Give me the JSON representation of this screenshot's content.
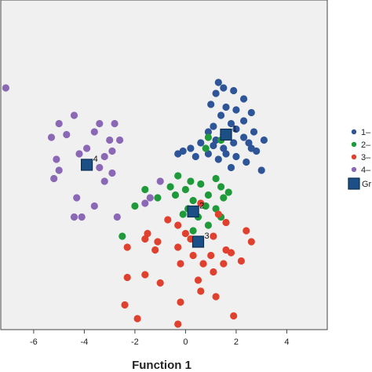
{
  "chart_data": {
    "type": "scatter",
    "title": "",
    "xlabel": "Function 1",
    "ylabel": "",
    "xlim": [
      -7.3,
      5.6
    ],
    "ylim": [
      -6.0,
      6.0
    ],
    "xticks": [
      "-6",
      "-4",
      "-2",
      "0",
      "2",
      "4"
    ],
    "xtick_values": [
      -6,
      -4,
      -2,
      0,
      2,
      4
    ],
    "grid": false,
    "legend_position": "right",
    "colors": {
      "plot_bg": "#f0f0f0",
      "series_1": "#2e5597",
      "series_2": "#1f9a3a",
      "series_3": "#e0412f",
      "series_4": "#8a68b5",
      "centroid": "#1b4f86"
    },
    "series": [
      {
        "name": "1",
        "legend_label": "1–",
        "points": [
          [
            1.3,
            3.0
          ],
          [
            1.5,
            2.8
          ],
          [
            1.2,
            2.6
          ],
          [
            1.9,
            2.7
          ],
          [
            2.3,
            2.4
          ],
          [
            1.0,
            2.2
          ],
          [
            1.6,
            2.1
          ],
          [
            2.0,
            2.0
          ],
          [
            1.4,
            1.8
          ],
          [
            2.6,
            1.9
          ],
          [
            2.3,
            1.6
          ],
          [
            1.8,
            1.5
          ],
          [
            1.1,
            1.4
          ],
          [
            2.0,
            1.3
          ],
          [
            2.7,
            1.2
          ],
          [
            1.5,
            1.1
          ],
          [
            2.3,
            1.0
          ],
          [
            0.9,
            1.2
          ],
          [
            3.1,
            0.9
          ],
          [
            1.2,
            0.9
          ],
          [
            1.9,
            0.8
          ],
          [
            2.5,
            0.8
          ],
          [
            0.6,
            0.8
          ],
          [
            0.2,
            0.6
          ],
          [
            1.5,
            0.6
          ],
          [
            2.8,
            0.5
          ],
          [
            -0.3,
            0.4
          ],
          [
            0.9,
            0.4
          ],
          [
            2.0,
            0.3
          ],
          [
            1.3,
            0.2
          ],
          [
            2.4,
            0.1
          ],
          [
            1.8,
            -0.1
          ],
          [
            3.0,
            -0.2
          ],
          [
            -0.1,
            0.5
          ],
          [
            0.4,
            0.3
          ],
          [
            1.6,
            0.4
          ],
          [
            2.6,
            0.6
          ],
          [
            1.1,
            0.7
          ]
        ]
      },
      {
        "name": "2",
        "legend_label": "2–",
        "points": [
          [
            0.9,
            1.0
          ],
          [
            1.4,
            0.9
          ],
          [
            0.8,
            0.6
          ],
          [
            -0.3,
            -0.4
          ],
          [
            0.2,
            -0.6
          ],
          [
            0.6,
            -0.7
          ],
          [
            1.2,
            -0.5
          ],
          [
            1.4,
            -0.8
          ],
          [
            0.0,
            -0.9
          ],
          [
            -1.6,
            -0.9
          ],
          [
            -1.1,
            -1.2
          ],
          [
            -0.4,
            -1.1
          ],
          [
            0.9,
            -1.1
          ],
          [
            1.5,
            -1.2
          ],
          [
            0.3,
            -1.3
          ],
          [
            -2.0,
            -1.5
          ],
          [
            0.8,
            -1.5
          ],
          [
            0.1,
            -1.6
          ],
          [
            1.2,
            -1.6
          ],
          [
            -0.1,
            -1.8
          ],
          [
            0.5,
            -1.9
          ],
          [
            1.4,
            -1.9
          ],
          [
            -2.5,
            -2.6
          ],
          [
            0.9,
            -2.2
          ],
          [
            0.3,
            -2.4
          ],
          [
            -0.6,
            -0.8
          ],
          [
            1.7,
            -1.0
          ]
        ]
      },
      {
        "name": "3",
        "legend_label": "3–",
        "points": [
          [
            0.6,
            -1.4
          ],
          [
            1.3,
            -1.8
          ],
          [
            -0.7,
            -2.0
          ],
          [
            -0.3,
            -2.2
          ],
          [
            1.6,
            -2.1
          ],
          [
            2.4,
            -2.4
          ],
          [
            0.0,
            -2.5
          ],
          [
            1.1,
            -2.6
          ],
          [
            -1.6,
            -2.7
          ],
          [
            -1.1,
            -2.8
          ],
          [
            0.2,
            -2.7
          ],
          [
            -1.5,
            -2.5
          ],
          [
            -2.3,
            -3.0
          ],
          [
            -0.3,
            -3.0
          ],
          [
            -1.2,
            -3.1
          ],
          [
            2.6,
            -2.8
          ],
          [
            0.3,
            -3.3
          ],
          [
            1.0,
            -3.3
          ],
          [
            1.8,
            -3.2
          ],
          [
            2.2,
            -3.5
          ],
          [
            0.7,
            -3.6
          ],
          [
            1.5,
            -3.6
          ],
          [
            -0.2,
            -3.6
          ],
          [
            1.1,
            -3.9
          ],
          [
            0.5,
            -4.2
          ],
          [
            -1.6,
            -4.0
          ],
          [
            -1.0,
            -4.3
          ],
          [
            -2.3,
            -4.1
          ],
          [
            0.6,
            -4.6
          ],
          [
            1.2,
            -4.8
          ],
          [
            -0.2,
            -5.0
          ],
          [
            -2.4,
            -5.1
          ],
          [
            -1.9,
            -5.6
          ],
          [
            -0.3,
            -5.8
          ],
          [
            1.9,
            -5.5
          ],
          [
            1.6,
            -3.1
          ]
        ]
      },
      {
        "name": "4",
        "legend_label": "4–",
        "points": [
          [
            -7.1,
            2.8
          ],
          [
            -5.0,
            1.5
          ],
          [
            -4.4,
            1.8
          ],
          [
            -3.4,
            1.5
          ],
          [
            -2.8,
            1.5
          ],
          [
            -4.7,
            1.1
          ],
          [
            -5.3,
            1.0
          ],
          [
            -3.6,
            1.2
          ],
          [
            -3.0,
            0.9
          ],
          [
            -2.6,
            0.9
          ],
          [
            -3.9,
            0.6
          ],
          [
            -2.9,
            0.5
          ],
          [
            -4.2,
            0.4
          ],
          [
            -3.2,
            0.3
          ],
          [
            -5.1,
            0.2
          ],
          [
            -5.0,
            -0.2
          ],
          [
            -2.9,
            -0.3
          ],
          [
            -3.4,
            -0.1
          ],
          [
            -5.2,
            -0.5
          ],
          [
            -3.2,
            -0.6
          ],
          [
            -4.3,
            -1.2
          ],
          [
            -1.0,
            -0.6
          ],
          [
            -1.6,
            -1.4
          ],
          [
            -4.1,
            -1.9
          ],
          [
            -3.6,
            -1.5
          ],
          [
            -2.7,
            -1.9
          ],
          [
            -4.4,
            -1.9
          ],
          [
            -1.4,
            -1.2
          ]
        ]
      }
    ],
    "centroids": [
      {
        "label": "1",
        "x": 1.6,
        "y": 1.1
      },
      {
        "label": "4",
        "x": -3.9,
        "y": 0.0
      },
      {
        "label": "2",
        "x": 0.3,
        "y": -1.7
      },
      {
        "label": "3",
        "x": 0.5,
        "y": -2.8
      }
    ],
    "centroid_legend_label": "Gr"
  }
}
